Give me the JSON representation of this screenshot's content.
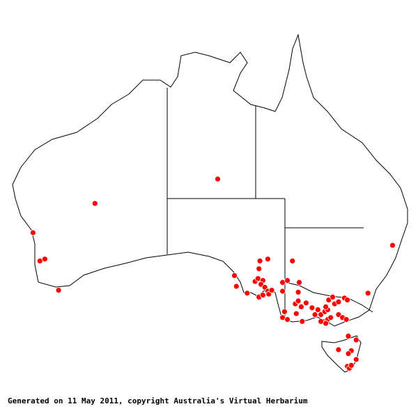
{
  "footer": {
    "text": "Generated on 11 May 2011, copyright Australia's Virtual Herbarium"
  },
  "map": {
    "region": "Australia",
    "colors": {
      "land_fill": "#ffffff",
      "outline": "#000000",
      "point": "#ff0000",
      "point_stroke": "#ffffff"
    },
    "points_lonlat": [
      [
        134.1,
        -24.0
      ],
      [
        121.6,
        -26.5
      ],
      [
        115.3,
        -29.5
      ],
      [
        116.0,
        -32.4
      ],
      [
        116.5,
        -32.2
      ],
      [
        117.9,
        -35.4
      ],
      [
        151.9,
        -30.8
      ],
      [
        149.4,
        -35.7
      ],
      [
        139.2,
        -32.2
      ],
      [
        138.4,
        -32.4
      ],
      [
        141.7,
        -32.4
      ],
      [
        135.8,
        -33.9
      ],
      [
        136.0,
        -35.0
      ],
      [
        137.1,
        -35.7
      ],
      [
        138.3,
        -33.2
      ],
      [
        137.9,
        -34.5
      ],
      [
        138.2,
        -34.2
      ],
      [
        138.7,
        -34.4
      ],
      [
        138.5,
        -34.8
      ],
      [
        138.9,
        -35.1
      ],
      [
        139.2,
        -35.5
      ],
      [
        138.3,
        -36.1
      ],
      [
        138.7,
        -35.9
      ],
      [
        139.3,
        -35.8
      ],
      [
        139.6,
        -35.4
      ],
      [
        140.7,
        -34.6
      ],
      [
        141.2,
        -34.4
      ],
      [
        140.7,
        -35.5
      ],
      [
        142.4,
        -34.6
      ],
      [
        140.9,
        -37.6
      ],
      [
        140.7,
        -38.2
      ],
      [
        141.2,
        -38.4
      ],
      [
        142.1,
        -37.8
      ],
      [
        142.7,
        -38.6
      ],
      [
        142.0,
        -36.8
      ],
      [
        142.3,
        -36.5
      ],
      [
        142.6,
        -37.1
      ],
      [
        143.1,
        -36.7
      ],
      [
        143.7,
        -37.2
      ],
      [
        144.3,
        -37.4
      ],
      [
        144.6,
        -37.9
      ],
      [
        145.0,
        -37.6
      ],
      [
        145.3,
        -37.4
      ],
      [
        145.4,
        -36.4
      ],
      [
        145.8,
        -36.1
      ],
      [
        146.0,
        -36.8
      ],
      [
        146.4,
        -36.6
      ],
      [
        147.0,
        -36.2
      ],
      [
        147.3,
        -36.4
      ],
      [
        145.3,
        -38.4
      ],
      [
        144.8,
        -38.6
      ],
      [
        145.1,
        -38.8
      ],
      [
        145.6,
        -38.2
      ],
      [
        146.4,
        -37.9
      ],
      [
        146.8,
        -38.2
      ],
      [
        144.0,
        -37.9
      ],
      [
        145.1,
        -37.1
      ],
      [
        147.4,
        -40.1
      ],
      [
        148.2,
        -40.5
      ],
      [
        146.4,
        -41.5
      ],
      [
        147.7,
        -41.6
      ],
      [
        147.4,
        -41.9
      ],
      [
        148.2,
        -42.5
      ],
      [
        147.3,
        -43.2
      ],
      [
        147.5,
        -43.4
      ],
      [
        147.7,
        -43.1
      ],
      [
        144.6,
        -38.6
      ],
      [
        147.2,
        -38.4
      ],
      [
        142.3,
        -35.6
      ]
    ]
  }
}
